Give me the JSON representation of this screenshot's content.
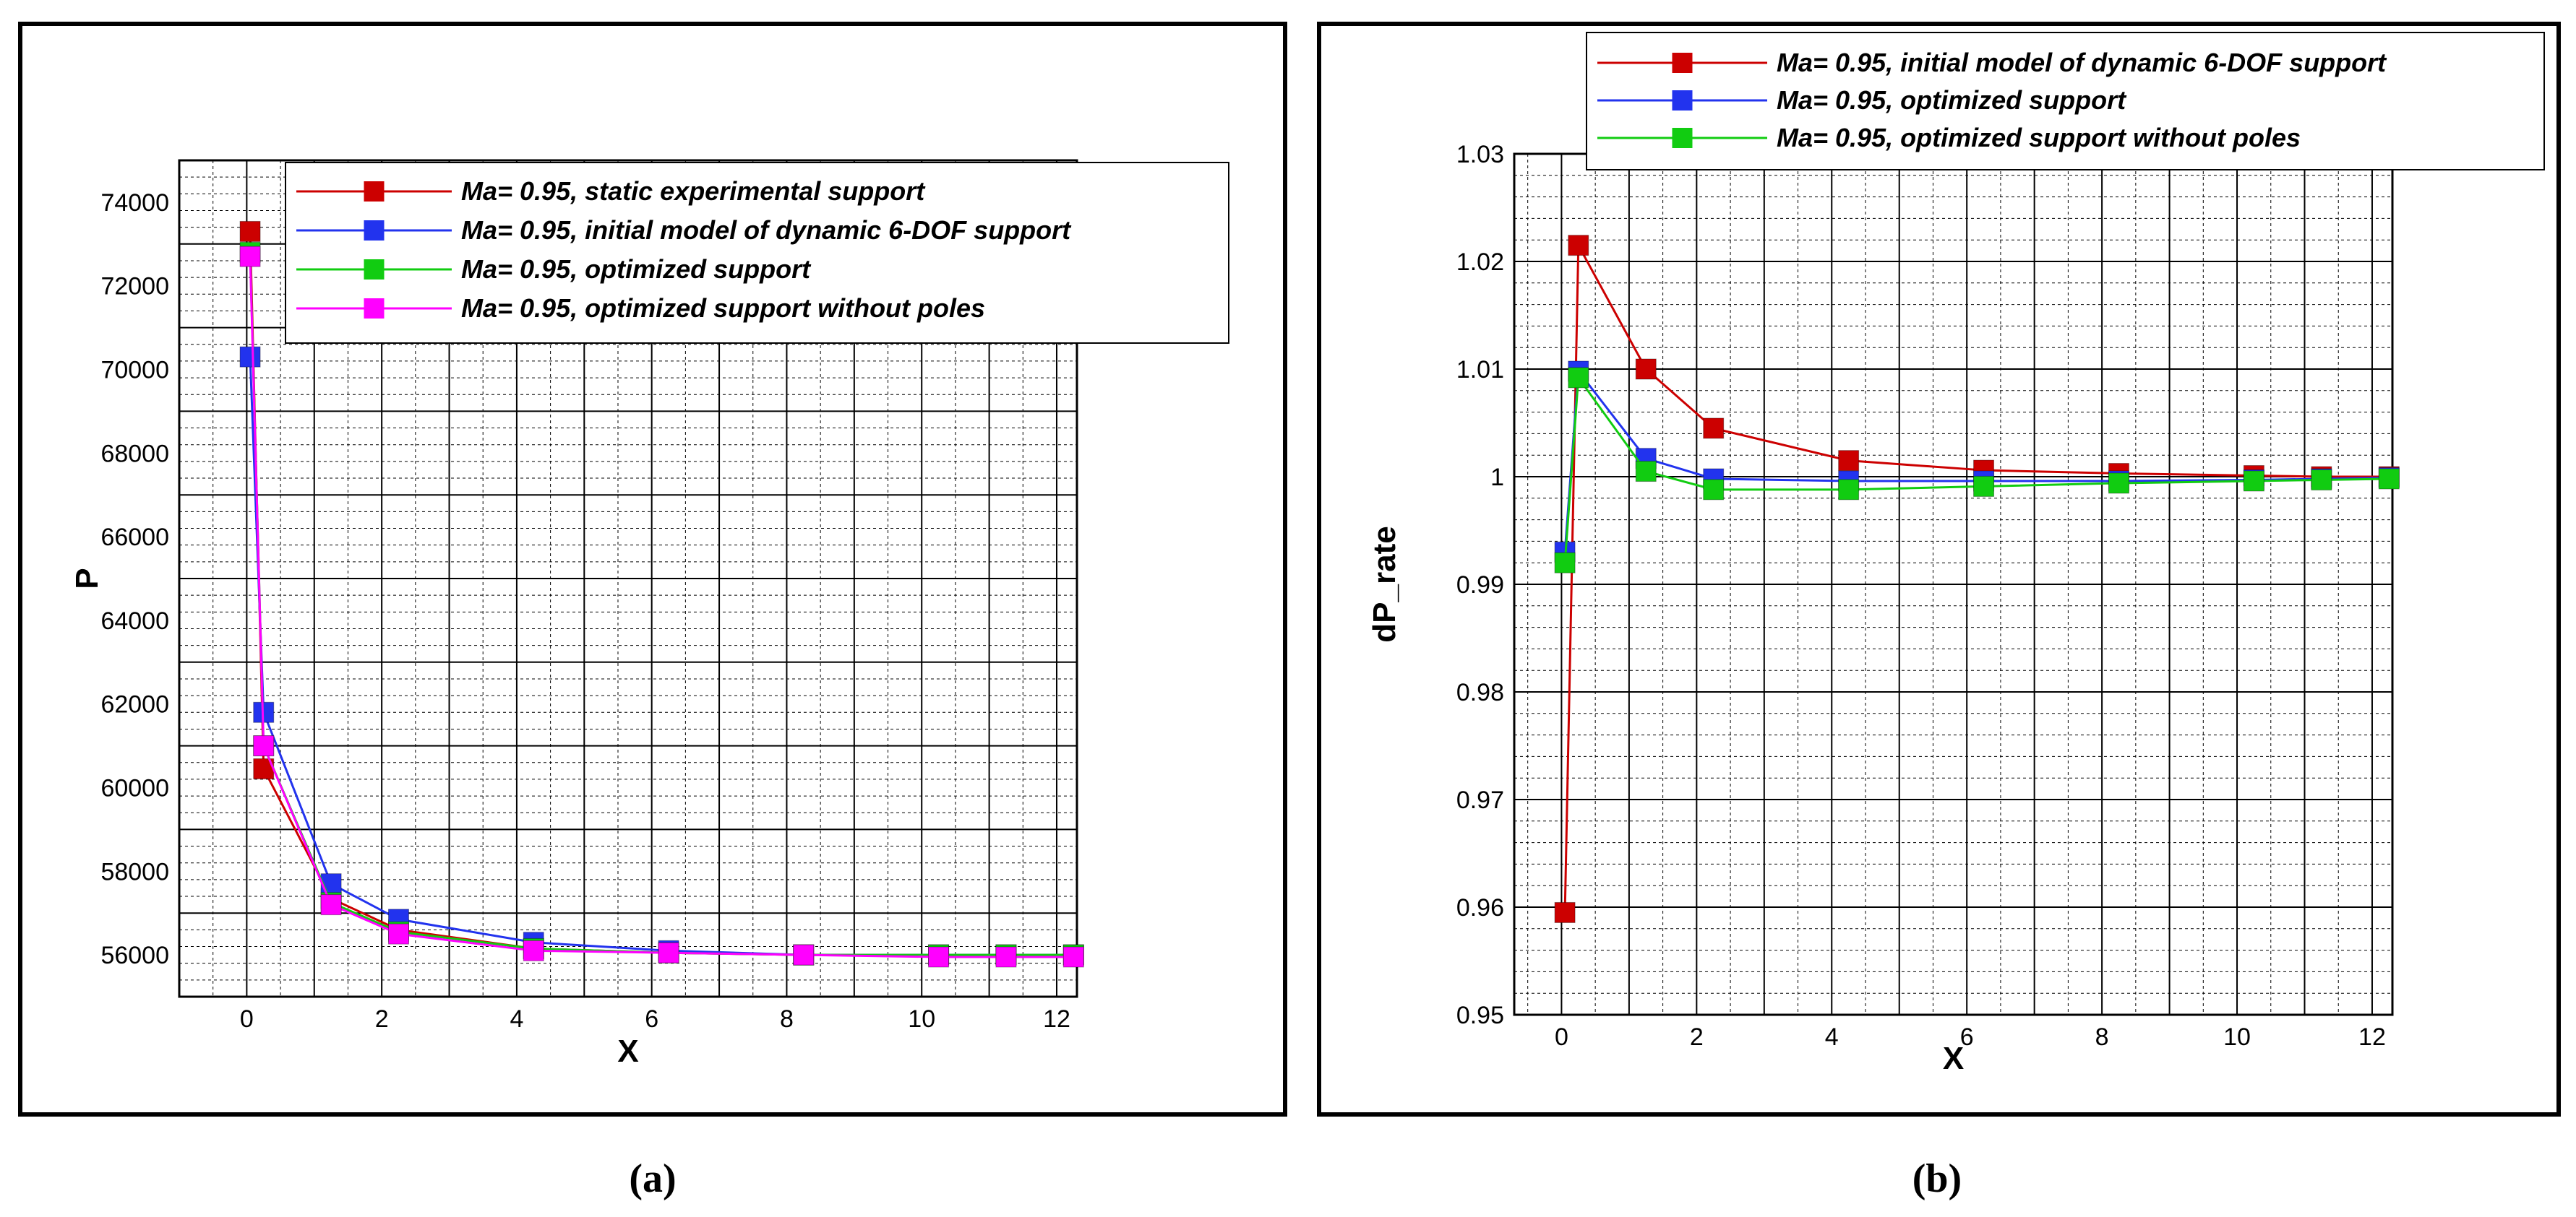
{
  "chart_data": [
    {
      "type": "line",
      "caption": "(a)",
      "xlabel": "X",
      "ylabel": "P",
      "xlim": [
        -1,
        12.3
      ],
      "ylim": [
        55000,
        75000
      ],
      "xticks": [
        0,
        2,
        4,
        6,
        8,
        10,
        12
      ],
      "yticks": [
        56000,
        58000,
        60000,
        62000,
        64000,
        66000,
        68000,
        70000,
        72000,
        74000
      ],
      "grid": true,
      "legend_position": "top-right",
      "series": [
        {
          "name": "Ma= 0.95, static experimental support",
          "color": "#cc0000",
          "x": [
            0.05,
            0.25,
            1.25,
            2.25,
            4.25,
            6.25,
            8.25,
            10.25,
            11.25,
            12.25
          ],
          "y": [
            73300,
            60450,
            57350,
            56600,
            56150,
            56050,
            56000,
            56000,
            56000,
            56000
          ]
        },
        {
          "name": "Ma= 0.95, initial model of dynamic 6-DOF support",
          "color": "#2233ee",
          "x": [
            0.05,
            0.25,
            1.25,
            2.25,
            4.25,
            6.25,
            8.25,
            10.25,
            11.25,
            12.25
          ],
          "y": [
            70300,
            61800,
            57700,
            56850,
            56300,
            56100,
            56000,
            56000,
            56000,
            56000
          ]
        },
        {
          "name": "Ma= 0.95, optimized support",
          "color": "#11cc11",
          "x": [
            0.05,
            0.25,
            1.25,
            2.25,
            4.25,
            6.25,
            8.25,
            10.25,
            11.25,
            12.25
          ],
          "y": [
            72800,
            61000,
            57250,
            56550,
            56150,
            56050,
            56000,
            56000,
            56000,
            56000
          ]
        },
        {
          "name": "Ma= 0.95, optimized support without poles",
          "color": "#ff00ff",
          "x": [
            0.05,
            0.25,
            1.25,
            2.25,
            4.25,
            6.25,
            8.25,
            10.25,
            11.25,
            12.25
          ],
          "y": [
            72700,
            61000,
            57200,
            56500,
            56100,
            56050,
            56000,
            55950,
            55950,
            55950
          ]
        }
      ]
    },
    {
      "type": "line",
      "caption": "(b)",
      "xlabel": "X",
      "ylabel": "dP_rate",
      "xlim": [
        -0.7,
        12.3
      ],
      "ylim": [
        0.95,
        1.03
      ],
      "xticks": [
        0,
        2,
        4,
        6,
        8,
        10,
        12
      ],
      "yticks": [
        "0.95",
        "0.96",
        "0.97",
        "0.98",
        "0.99",
        "1",
        "1.01",
        "1.02",
        "1.03"
      ],
      "grid": true,
      "legend_position": "top-right",
      "series": [
        {
          "name": "Ma= 0.95, initial model of dynamic 6-DOF support",
          "color": "#cc0000",
          "x": [
            0.05,
            0.25,
            1.25,
            2.25,
            4.25,
            6.25,
            8.25,
            10.25,
            11.25,
            12.25
          ],
          "y": [
            0.9595,
            1.0215,
            1.01,
            1.0045,
            1.0015,
            1.0006,
            1.0003,
            1.0001,
            1.0,
            1.0
          ]
        },
        {
          "name": "Ma= 0.95, optimized support",
          "color": "#2233ee",
          "x": [
            0.05,
            0.25,
            1.25,
            2.25,
            4.25,
            6.25,
            8.25,
            10.25,
            11.25,
            12.25
          ],
          "y": [
            0.993,
            1.0098,
            1.0017,
            0.9998,
            0.9996,
            0.9996,
            0.9996,
            0.9997,
            0.9998,
            0.9999
          ]
        },
        {
          "name": "Ma= 0.95, optimized support without poles",
          "color": "#11cc11",
          "x": [
            0.05,
            0.25,
            1.25,
            2.25,
            4.25,
            6.25,
            8.25,
            10.25,
            11.25,
            12.25
          ],
          "y": [
            0.992,
            1.0092,
            1.0005,
            0.9988,
            0.9988,
            0.9991,
            0.9994,
            0.9996,
            0.9997,
            0.9998
          ]
        }
      ]
    }
  ]
}
